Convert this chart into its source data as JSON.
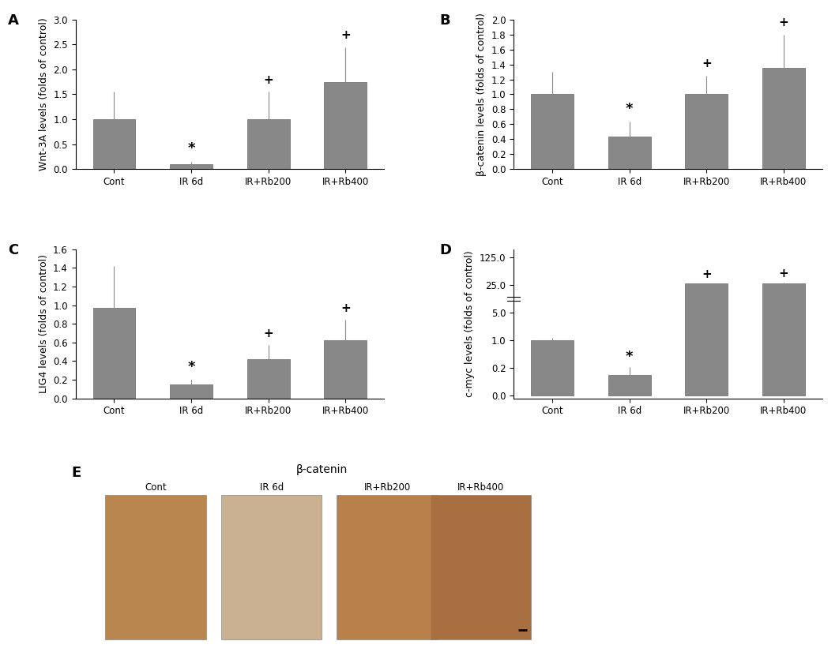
{
  "categories": [
    "Cont",
    "IR 6d",
    "IR+Rb200",
    "IR+Rb400"
  ],
  "bar_color": "#888888",
  "bar_edge_color": "#666666",
  "A": {
    "values": [
      1.0,
      0.1,
      1.0,
      1.75
    ],
    "errors": [
      0.55,
      0.05,
      0.55,
      0.7
    ],
    "ylabel": "Wnt-3A levels (folds of control)",
    "ylim": [
      0,
      3.0
    ],
    "yticks": [
      0,
      0.5,
      1.0,
      1.5,
      2.0,
      2.5,
      3.0
    ],
    "sig_star": [
      false,
      true,
      false,
      false
    ],
    "sig_plus": [
      false,
      false,
      true,
      true
    ],
    "label": "A"
  },
  "B": {
    "values": [
      1.0,
      0.43,
      1.0,
      1.35
    ],
    "errors": [
      0.3,
      0.2,
      0.25,
      0.45
    ],
    "ylabel": "β-catenin levels (folds of control)",
    "ylim": [
      0,
      2.0
    ],
    "yticks": [
      0,
      0.2,
      0.4,
      0.6,
      0.8,
      1.0,
      1.2,
      1.4,
      1.6,
      1.8,
      2.0
    ],
    "sig_star": [
      false,
      true,
      false,
      false
    ],
    "sig_plus": [
      false,
      false,
      true,
      true
    ],
    "label": "B"
  },
  "C": {
    "values": [
      0.97,
      0.15,
      0.42,
      0.62
    ],
    "errors": [
      0.45,
      0.05,
      0.15,
      0.22
    ],
    "ylabel": "LIG4 levels (folds of control)",
    "ylim": [
      0,
      1.6
    ],
    "yticks": [
      0,
      0.2,
      0.4,
      0.6,
      0.8,
      1.0,
      1.2,
      1.4,
      1.6
    ],
    "sig_star": [
      false,
      true,
      false,
      false
    ],
    "sig_plus": [
      false,
      false,
      true,
      true
    ],
    "label": "C"
  },
  "D": {
    "values": [
      1.0,
      0.15,
      30.0,
      32.0
    ],
    "errors": [
      0.4,
      0.07,
      1.5,
      2.5
    ],
    "ylabel": "c-myc levels (folds of control)",
    "yticks": [
      0.0,
      0.2,
      1.0,
      5.0,
      25.0,
      125.0
    ],
    "ytick_labels": [
      "0.0",
      "0.2",
      "1.0",
      "5.0",
      "25.0",
      "125.0"
    ],
    "sig_star": [
      false,
      true,
      false,
      false
    ],
    "sig_plus": [
      false,
      false,
      true,
      true
    ],
    "label": "D"
  },
  "E_title": "β-catenin",
  "E_sublabels": [
    "Cont",
    "IR 6d",
    "IR+Rb200",
    "IR+Rb400"
  ],
  "img_colors_top": [
    "#c8a060",
    "#b8a080",
    "#c09060",
    "#b08040"
  ],
  "img_colors_bot": [
    "#a07840",
    "#9090a0",
    "#b08060",
    "#906030"
  ],
  "panel_label_fontsize": 13,
  "tick_fontsize": 8.5,
  "ylabel_fontsize": 9,
  "xlabel_fontsize": 9,
  "annotation_fontsize": 11
}
